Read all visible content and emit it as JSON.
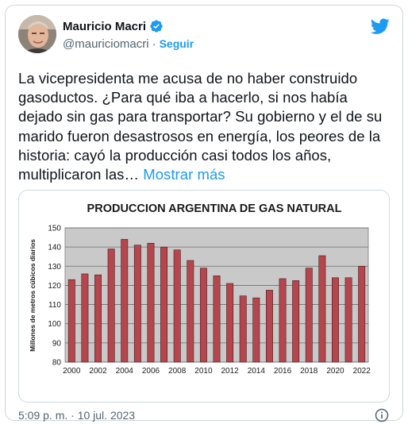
{
  "user": {
    "display_name": "Mauricio Macri",
    "handle": "@mauriciomacri",
    "separator": "·",
    "follow_label": "Seguir"
  },
  "tweet": {
    "text": "La vicepresidenta me acusa de no haber construido gasoductos. ¿Para qué iba a hacerlo, si nos había dejado sin gas para transportar? Su gobierno y el de su marido fueron desastrosos en energía, los peores de la historia: cayó la producción casi todos los años, multiplicaron las…",
    "more_label": "Mostrar más",
    "timestamp": "5:09 p. m. · 10 jul. 2023"
  },
  "icons": {
    "verified": "verified-badge-icon",
    "bird": "twitter-bird-icon",
    "info": "info-icon"
  },
  "colors": {
    "accent": "#1d9bf0",
    "bar_fill": "#b5464d",
    "plot_bg": "#c9c9c9"
  },
  "chart_data": {
    "type": "bar",
    "title": "PRODUCCION ARGENTINA DE GAS NATURAL",
    "ylabel": "Millones de metros cúbicos diarios",
    "xlabel": "",
    "ylim": [
      80,
      150
    ],
    "yticks": [
      80,
      90,
      100,
      110,
      120,
      130,
      140,
      150
    ],
    "grid": true,
    "categories": [
      "2000",
      "2001",
      "2002",
      "2003",
      "2004",
      "2005",
      "2006",
      "2007",
      "2008",
      "2009",
      "2010",
      "2011",
      "2012",
      "2013",
      "2014",
      "2015",
      "2016",
      "2017",
      "2018",
      "2019",
      "2020",
      "2021",
      "2022"
    ],
    "xtick_labels": [
      "2000",
      "2002",
      "2004",
      "2006",
      "2008",
      "2010",
      "2012",
      "2014",
      "2016",
      "2018",
      "2020",
      "2022"
    ],
    "values": [
      123,
      126,
      125.5,
      139,
      144,
      141,
      142,
      140,
      138.5,
      133,
      129,
      125,
      121,
      114.5,
      113.5,
      117.5,
      123.5,
      122.5,
      129,
      135.5,
      124,
      124,
      130
    ]
  }
}
